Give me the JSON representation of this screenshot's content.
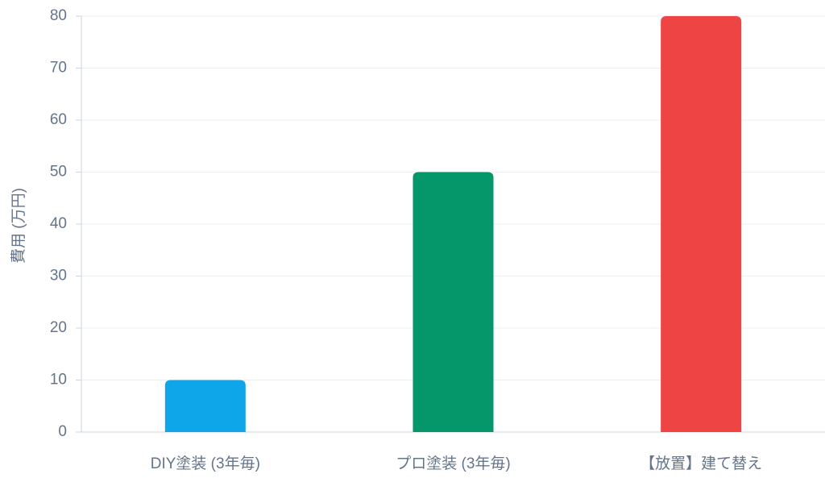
{
  "chart_data": {
    "type": "bar",
    "y_label": "費用 (万円)",
    "categories": [
      "DIY塗装 (3年毎)",
      "プロ塗装 (3年毎)",
      "【放置】建て替え"
    ],
    "values": [
      10,
      50,
      80
    ],
    "colors": [
      "#0ea5e9",
      "#059669",
      "#ef4444"
    ],
    "ylim": [
      0,
      80
    ],
    "yticks": [
      0,
      10,
      20,
      30,
      40,
      50,
      60,
      70,
      80
    ],
    "grid": true
  }
}
